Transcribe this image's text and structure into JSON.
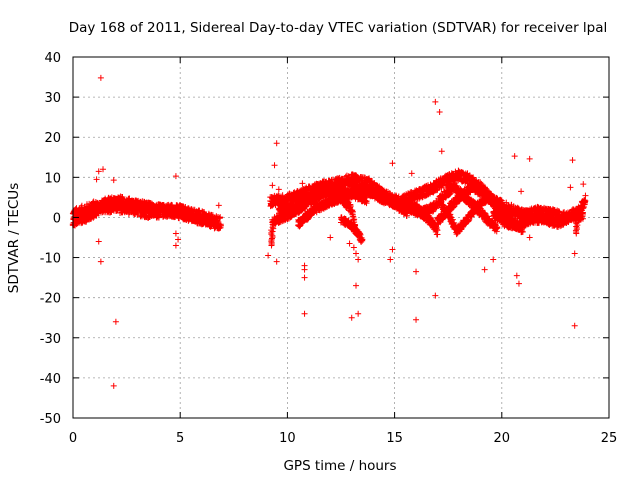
{
  "chart_data": {
    "type": "scatter",
    "title": "Day 168 of 2011, Sidereal Day-to-day VTEC variation (SDTVAR) for receiver lpal",
    "xlabel": "GPS time / hours",
    "ylabel": "SDTVAR / TECUs",
    "xlim": [
      0,
      25
    ],
    "ylim": [
      -50,
      40
    ],
    "xticks": [
      0,
      5,
      10,
      15,
      20,
      25
    ],
    "yticks": [
      -50,
      -40,
      -30,
      -20,
      -10,
      0,
      10,
      20,
      30,
      40
    ],
    "grid": true,
    "marker": "+",
    "color": "#ff0000",
    "band_traces": [
      {
        "name": "trace-1",
        "points": [
          [
            0.0,
            0.5
          ],
          [
            0.5,
            1.5
          ],
          [
            1.0,
            2.5
          ],
          [
            1.5,
            2.8
          ],
          [
            2.0,
            2.8
          ],
          [
            2.5,
            2.5
          ],
          [
            3.0,
            2.0
          ],
          [
            3.5,
            1.5
          ],
          [
            4.0,
            1.5
          ],
          [
            4.5,
            1.8
          ],
          [
            5.0,
            1.5
          ],
          [
            5.5,
            0.8
          ],
          [
            6.0,
            0.0
          ],
          [
            6.5,
            -1.0
          ],
          [
            6.9,
            -1.5
          ]
        ],
        "spread": 1.6
      },
      {
        "name": "trace-2",
        "points": [
          [
            0.0,
            -1.0
          ],
          [
            0.8,
            0.5
          ],
          [
            1.5,
            3.5
          ],
          [
            2.2,
            4.0
          ],
          [
            3.0,
            3.0
          ],
          [
            4.0,
            2.0
          ],
          [
            5.0,
            1.0
          ],
          [
            6.0,
            -0.5
          ],
          [
            6.8,
            -1.5
          ]
        ],
        "spread": 1.3
      },
      {
        "name": "trace-3",
        "points": [
          [
            9.2,
            4.0
          ],
          [
            10.0,
            4.5
          ],
          [
            10.8,
            6.0
          ],
          [
            11.5,
            7.5
          ],
          [
            12.3,
            8.5
          ],
          [
            13.0,
            9.5
          ],
          [
            13.8,
            8.5
          ],
          [
            14.5,
            5.5
          ],
          [
            15.2,
            4.0
          ],
          [
            16.0,
            5.5
          ],
          [
            16.8,
            7.5
          ],
          [
            17.5,
            9.5
          ],
          [
            18.0,
            10.5
          ],
          [
            18.5,
            9.5
          ],
          [
            19.0,
            7.5
          ],
          [
            19.6,
            4.0
          ],
          [
            20.2,
            2.5
          ],
          [
            20.8,
            1.0
          ],
          [
            21.4,
            0.5
          ]
        ],
        "spread": 1.3
      },
      {
        "name": "trace-4",
        "points": [
          [
            9.6,
            1.5
          ],
          [
            10.3,
            2.5
          ],
          [
            11.0,
            5.0
          ],
          [
            11.7,
            6.5
          ],
          [
            12.4,
            5.5
          ],
          [
            13.0,
            2.0
          ],
          [
            13.2,
            -3.0
          ]
        ],
        "spread": 1.0
      },
      {
        "name": "trace-5",
        "points": [
          [
            9.3,
            -1.0
          ],
          [
            10.0,
            0.5
          ],
          [
            10.8,
            3.0
          ],
          [
            11.5,
            5.5
          ],
          [
            12.2,
            6.8
          ],
          [
            13.0,
            6.0
          ],
          [
            13.7,
            4.5
          ]
        ],
        "spread": 1.0
      },
      {
        "name": "trace-6",
        "points": [
          [
            10.5,
            -1.5
          ],
          [
            11.3,
            2.0
          ],
          [
            12.0,
            4.0
          ],
          [
            12.8,
            5.5
          ],
          [
            13.5,
            6.5
          ],
          [
            14.3,
            6.0
          ],
          [
            15.0,
            3.5
          ],
          [
            15.6,
            1.0
          ]
        ],
        "spread": 1.0
      },
      {
        "name": "trace-7",
        "points": [
          [
            13.0,
            7.5
          ],
          [
            13.8,
            6.5
          ],
          [
            14.5,
            4.5
          ],
          [
            15.3,
            3.0
          ],
          [
            16.0,
            2.5
          ],
          [
            16.6,
            -0.5
          ],
          [
            17.0,
            -3.5
          ]
        ],
        "spread": 1.0
      },
      {
        "name": "trace-8",
        "points": [
          [
            15.5,
            3.0
          ],
          [
            16.2,
            1.0
          ],
          [
            16.8,
            2.5
          ],
          [
            17.3,
            5.5
          ],
          [
            17.8,
            7.5
          ],
          [
            18.3,
            5.0
          ],
          [
            18.9,
            2.0
          ],
          [
            19.3,
            -0.5
          ],
          [
            19.8,
            -3.0
          ]
        ],
        "spread": 1.0
      },
      {
        "name": "trace-9",
        "points": [
          [
            17.0,
            -1.0
          ],
          [
            17.5,
            2.0
          ],
          [
            18.0,
            5.0
          ],
          [
            18.6,
            7.5
          ],
          [
            19.2,
            6.0
          ],
          [
            19.8,
            2.5
          ],
          [
            20.4,
            -1.0
          ],
          [
            21.0,
            -3.0
          ]
        ],
        "spread": 1.0
      },
      {
        "name": "trace-10",
        "points": [
          [
            17.2,
            3.0
          ],
          [
            17.6,
            0.0
          ],
          [
            17.9,
            -3.5
          ],
          [
            18.3,
            -1.0
          ],
          [
            18.9,
            3.0
          ],
          [
            19.5,
            5.5
          ]
        ],
        "spread": 0.9
      },
      {
        "name": "trace-11",
        "points": [
          [
            19.6,
            1.0
          ],
          [
            20.2,
            -1.5
          ],
          [
            20.8,
            -2.0
          ],
          [
            21.3,
            -0.5
          ],
          [
            22.0,
            -0.5
          ],
          [
            22.6,
            -1.5
          ],
          [
            23.2,
            0.0
          ],
          [
            23.8,
            0.5
          ]
        ],
        "spread": 1.0
      },
      {
        "name": "trace-12",
        "points": [
          [
            21.0,
            0.5
          ],
          [
            21.7,
            1.5
          ],
          [
            22.3,
            1.0
          ],
          [
            23.0,
            0.0
          ],
          [
            23.6,
            1.5
          ],
          [
            23.9,
            4.5
          ]
        ],
        "spread": 1.2
      },
      {
        "name": "trace-13",
        "points": [
          [
            12.5,
            -0.5
          ],
          [
            13.0,
            -2.0
          ],
          [
            13.3,
            -4.0
          ],
          [
            13.5,
            -6.0
          ]
        ],
        "spread": 0.8
      },
      {
        "name": "trace-14",
        "points": [
          [
            9.3,
            -2.0
          ],
          [
            9.3,
            -7.0
          ]
        ],
        "spread": 0.6
      },
      {
        "name": "trace-15",
        "points": [
          [
            23.5,
            1.0
          ],
          [
            23.5,
            -4.0
          ]
        ],
        "spread": 0.6
      }
    ],
    "outliers": [
      [
        1.3,
        34.8
      ],
      [
        1.1,
        9.5
      ],
      [
        1.2,
        11.5
      ],
      [
        1.4,
        12.0
      ],
      [
        1.9,
        9.3
      ],
      [
        1.2,
        -6.0
      ],
      [
        1.3,
        -11.0
      ],
      [
        2.0,
        -26.0
      ],
      [
        1.9,
        -42.0
      ],
      [
        4.8,
        10.3
      ],
      [
        4.8,
        -4.0
      ],
      [
        4.9,
        -5.5
      ],
      [
        4.8,
        -7.0
      ],
      [
        6.8,
        3.0
      ],
      [
        9.5,
        18.5
      ],
      [
        9.4,
        13.0
      ],
      [
        9.3,
        8.0
      ],
      [
        9.6,
        7.0
      ],
      [
        9.1,
        -9.5
      ],
      [
        9.5,
        -11.0
      ],
      [
        10.7,
        8.5
      ],
      [
        10.8,
        -12.0
      ],
      [
        10.8,
        -13.0
      ],
      [
        10.8,
        -15.0
      ],
      [
        10.8,
        -24.0
      ],
      [
        12.0,
        -5.0
      ],
      [
        12.9,
        -6.5
      ],
      [
        13.1,
        -7.5
      ],
      [
        13.2,
        -9.0
      ],
      [
        13.3,
        -10.5
      ],
      [
        13.2,
        -17.0
      ],
      [
        13.3,
        -24.0
      ],
      [
        13.0,
        -25.0
      ],
      [
        14.9,
        13.5
      ],
      [
        14.9,
        -8.0
      ],
      [
        14.8,
        -10.5
      ],
      [
        15.8,
        11.0
      ],
      [
        16.0,
        -13.5
      ],
      [
        16.0,
        -25.5
      ],
      [
        16.9,
        28.8
      ],
      [
        17.1,
        26.3
      ],
      [
        17.2,
        16.5
      ],
      [
        16.9,
        -19.5
      ],
      [
        19.2,
        -13.0
      ],
      [
        19.6,
        -10.5
      ],
      [
        20.6,
        15.3
      ],
      [
        20.7,
        -14.5
      ],
      [
        20.8,
        -16.5
      ],
      [
        20.9,
        6.5
      ],
      [
        21.3,
        14.6
      ],
      [
        21.3,
        -5.0
      ],
      [
        23.3,
        14.3
      ],
      [
        23.4,
        -9.0
      ],
      [
        23.4,
        -27.0
      ],
      [
        23.8,
        8.3
      ],
      [
        23.2,
        7.5
      ]
    ]
  }
}
